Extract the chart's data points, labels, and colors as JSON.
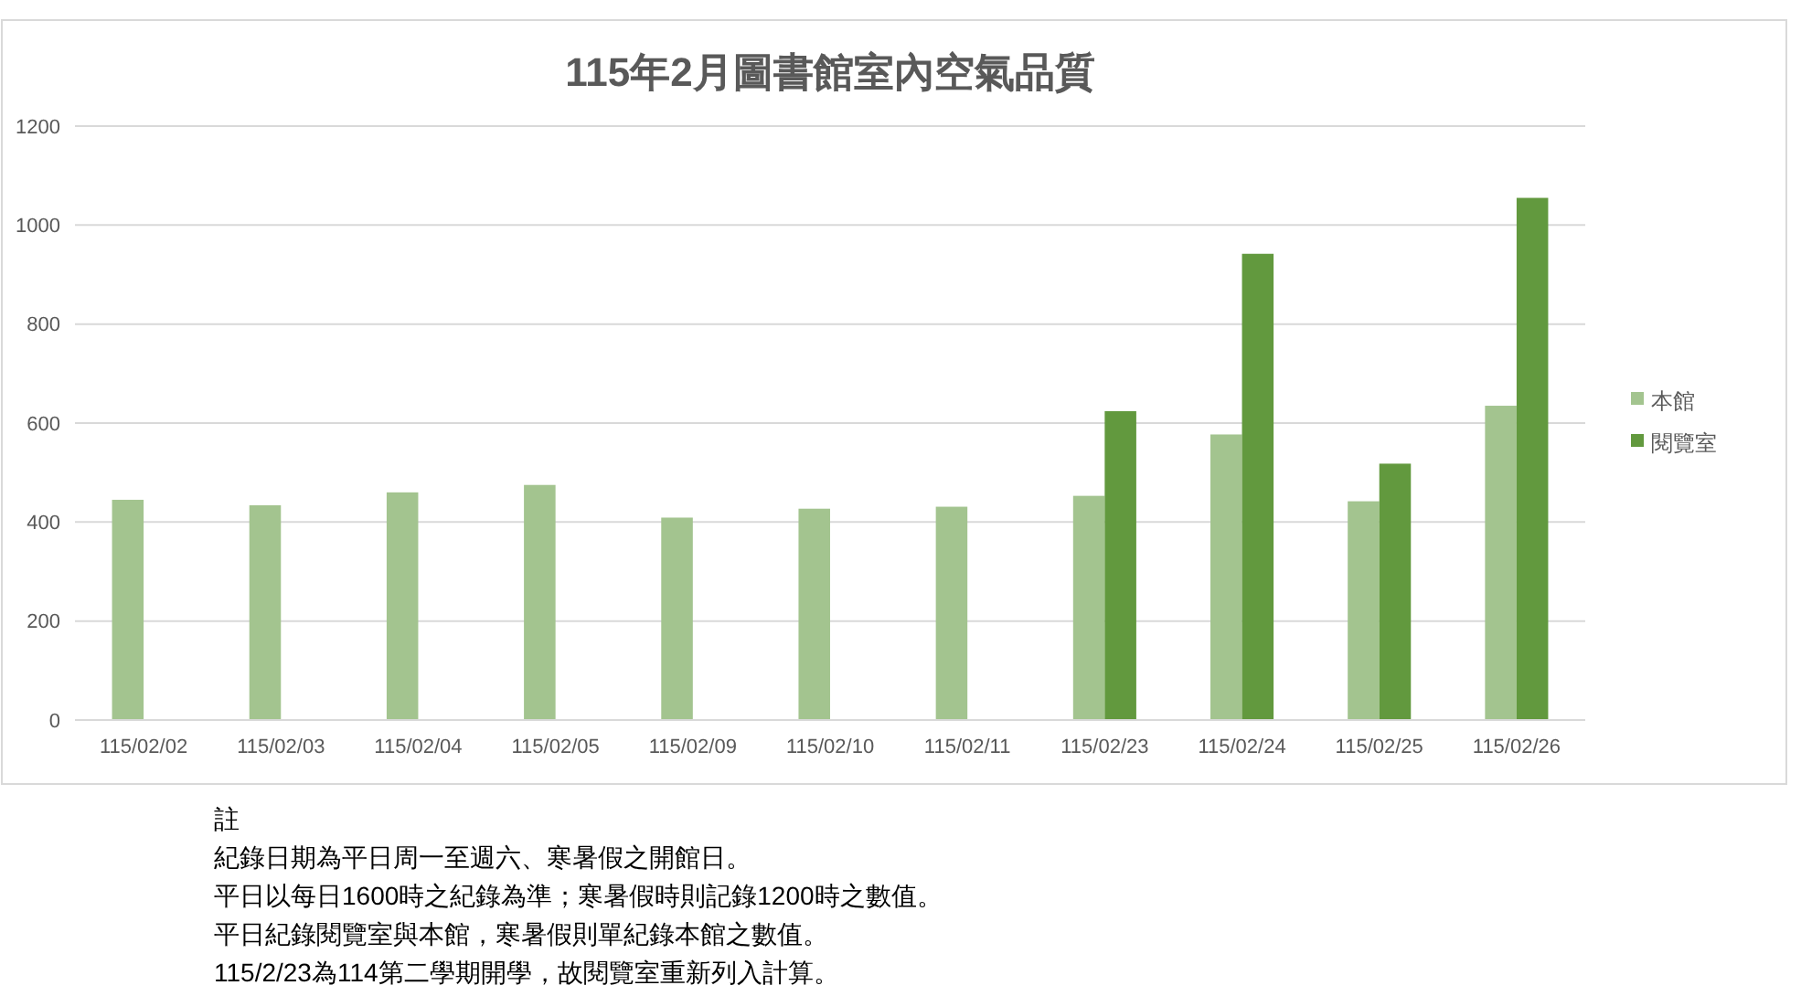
{
  "chart_data": {
    "type": "bar",
    "title": "115年2月圖書館室內空氣品質",
    "categories": [
      "115/02/02",
      "115/02/03",
      "115/02/04",
      "115/02/05",
      "115/02/09",
      "115/02/10",
      "115/02/11",
      "115/02/23",
      "115/02/24",
      "115/02/25",
      "115/02/26"
    ],
    "series": [
      {
        "name": "本館",
        "color": "#a3c48f",
        "values": [
          445,
          434,
          460,
          475,
          409,
          427,
          431,
          453,
          577,
          442,
          635
        ]
      },
      {
        "name": "閱覽室",
        "color": "#62993e",
        "values": [
          null,
          null,
          null,
          null,
          null,
          null,
          null,
          624,
          942,
          518,
          1055
        ]
      }
    ],
    "ylim": [
      0,
      1200
    ],
    "yticks": [
      0,
      200,
      400,
      600,
      800,
      1000,
      1200
    ],
    "grid": "y",
    "legend": "right",
    "annotations": [
      "註",
      "紀錄日期為平日周一至週六、寒暑假之開館日。",
      "平日以每日1600時之紀錄為準；寒暑假時則記錄1200時之數值。",
      "平日紀錄閱覽室與本館，寒暑假則單紀錄本館之數值。",
      "115/2/23為114第二學期開學，故閱覽室重新列入計算。"
    ]
  }
}
